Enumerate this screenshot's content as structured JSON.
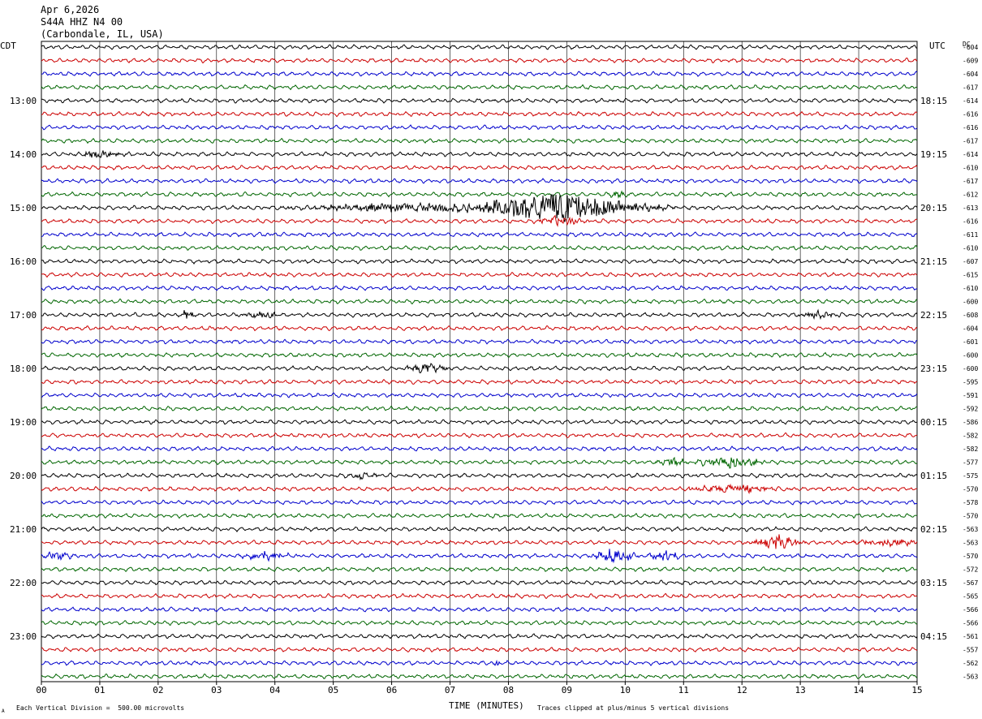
{
  "header": {
    "date": "Apr 6,2026",
    "station": "S44A HHZ N4 00",
    "location": "(Carbondale, IL, USA)"
  },
  "left_timezone": "CDT",
  "right_timezone": "UTC",
  "dc_header": "DC",
  "footer": {
    "xlabel": "TIME (MINUTES)",
    "scale_note": "Each Vertical Division =  500.00 microvolts",
    "clip_note": "Traces clipped at plus/minus 5 vertical divisions",
    "corner_mark": "A"
  },
  "colors": {
    "cycle": [
      "#000000",
      "#cc0000",
      "#0000cc",
      "#006600"
    ],
    "grid": "#000000"
  },
  "chart_data": {
    "type": "line",
    "title": "",
    "xlabel": "TIME (MINUTES)",
    "ylabel": "",
    "x_ticks": [
      "00",
      "01",
      "02",
      "03",
      "04",
      "05",
      "06",
      "07",
      "08",
      "09",
      "10",
      "11",
      "12",
      "13",
      "14",
      "15"
    ],
    "xlim": [
      0,
      15
    ],
    "rows": 48,
    "left_hour_labels": [
      "13:00",
      "14:00",
      "15:00",
      "16:00",
      "17:00",
      "18:00",
      "19:00",
      "20:00",
      "21:00",
      "22:00",
      "23:00"
    ],
    "right_hour_labels": [
      "18:15",
      "19:15",
      "20:15",
      "21:15",
      "22:15",
      "23:15",
      "00:15",
      "01:15",
      "02:15",
      "03:15",
      "04:15"
    ],
    "dc_offsets": [
      "-604",
      "-609",
      "-604",
      "-617",
      "-614",
      "-616",
      "-616",
      "-617",
      "-614",
      "-610",
      "-617",
      "-612",
      "-613",
      "-616",
      "-611",
      "-610",
      "-607",
      "-615",
      "-610",
      "-600",
      "-608",
      "-604",
      "-601",
      "-600",
      "-600",
      "-595",
      "-591",
      "-592",
      "-586",
      "-582",
      "-582",
      "-577",
      "-575",
      "-570",
      "-578",
      "-570",
      "-563",
      "-563",
      "-570",
      "-572",
      "-567",
      "-565",
      "-566",
      "-566",
      "-561",
      "-557",
      "-562",
      "-563"
    ],
    "events": [
      {
        "row": 8,
        "center_min": 1.0,
        "width_min": 0.6,
        "amp": 4
      },
      {
        "row": 11,
        "center_min": 9.9,
        "width_min": 0.3,
        "amp": 4
      },
      {
        "row": 12,
        "center_min": 8.8,
        "width_min": 2.5,
        "amp": 18
      },
      {
        "row": 12,
        "center_min": 6.2,
        "width_min": 3.0,
        "amp": 5
      },
      {
        "row": 13,
        "center_min": 8.9,
        "width_min": 0.6,
        "amp": 6
      },
      {
        "row": 20,
        "center_min": 2.5,
        "width_min": 0.3,
        "amp": 5
      },
      {
        "row": 20,
        "center_min": 3.8,
        "width_min": 0.6,
        "amp": 4
      },
      {
        "row": 20,
        "center_min": 13.3,
        "width_min": 0.6,
        "amp": 4
      },
      {
        "row": 24,
        "center_min": 6.6,
        "width_min": 0.5,
        "amp": 7
      },
      {
        "row": 31,
        "center_min": 11.8,
        "width_min": 0.8,
        "amp": 8
      },
      {
        "row": 31,
        "center_min": 10.8,
        "width_min": 0.4,
        "amp": 5
      },
      {
        "row": 32,
        "center_min": 5.5,
        "width_min": 0.4,
        "amp": 4
      },
      {
        "row": 33,
        "center_min": 11.9,
        "width_min": 1.2,
        "amp": 5
      },
      {
        "row": 37,
        "center_min": 12.6,
        "width_min": 0.6,
        "amp": 9
      },
      {
        "row": 37,
        "center_min": 14.5,
        "width_min": 1.2,
        "amp": 4
      },
      {
        "row": 38,
        "center_min": 0.3,
        "width_min": 0.4,
        "amp": 5
      },
      {
        "row": 38,
        "center_min": 3.8,
        "width_min": 0.6,
        "amp": 6
      },
      {
        "row": 38,
        "center_min": 9.8,
        "width_min": 0.6,
        "amp": 8
      },
      {
        "row": 38,
        "center_min": 10.7,
        "width_min": 0.4,
        "amp": 7
      },
      {
        "row": 46,
        "center_min": 7.8,
        "width_min": 0.1,
        "amp": 5
      }
    ]
  }
}
